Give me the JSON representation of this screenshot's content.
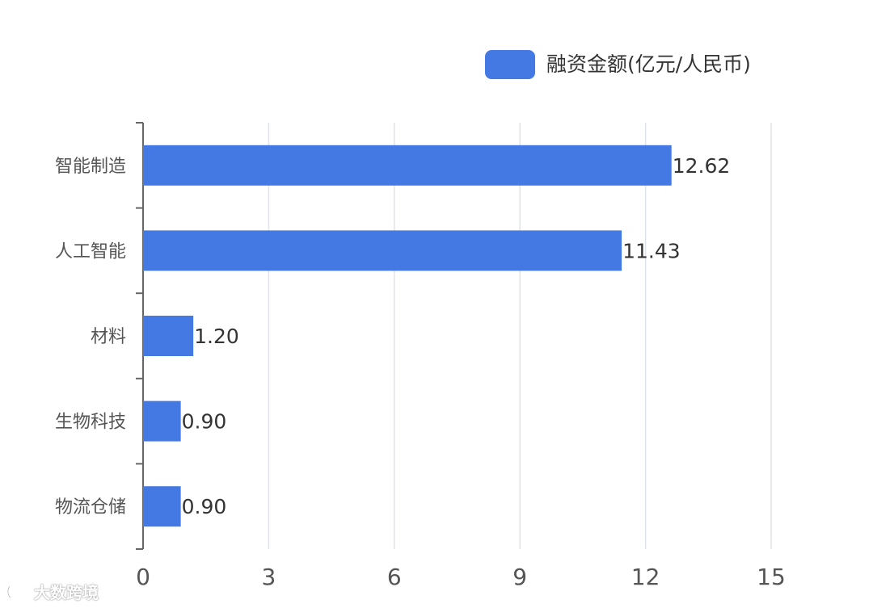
{
  "colors": {
    "bar": "#4479E3",
    "axis": "#666666",
    "grid": "#E0E3EA",
    "label": "#555555",
    "value": "#333333"
  },
  "watermark": {
    "text": "大数跨境"
  },
  "chart_data": {
    "type": "bar",
    "orientation": "horizontal",
    "categories": [
      "智能制造",
      "人工智能",
      "材料",
      "生物科技",
      "物流仓储"
    ],
    "series": [
      {
        "name": "融资金额(亿元/人民币)",
        "values": [
          12.62,
          11.43,
          1.2,
          0.9,
          0.9
        ],
        "labels": [
          "12.62",
          "11.43",
          "1.20",
          "0.90",
          "0.90"
        ]
      }
    ],
    "xlim": [
      0,
      15
    ],
    "xticks": [
      "0",
      "3",
      "6",
      "9",
      "12",
      "15"
    ],
    "grid": true,
    "legend": "top-right",
    "title": "",
    "xlabel": "",
    "ylabel": ""
  }
}
